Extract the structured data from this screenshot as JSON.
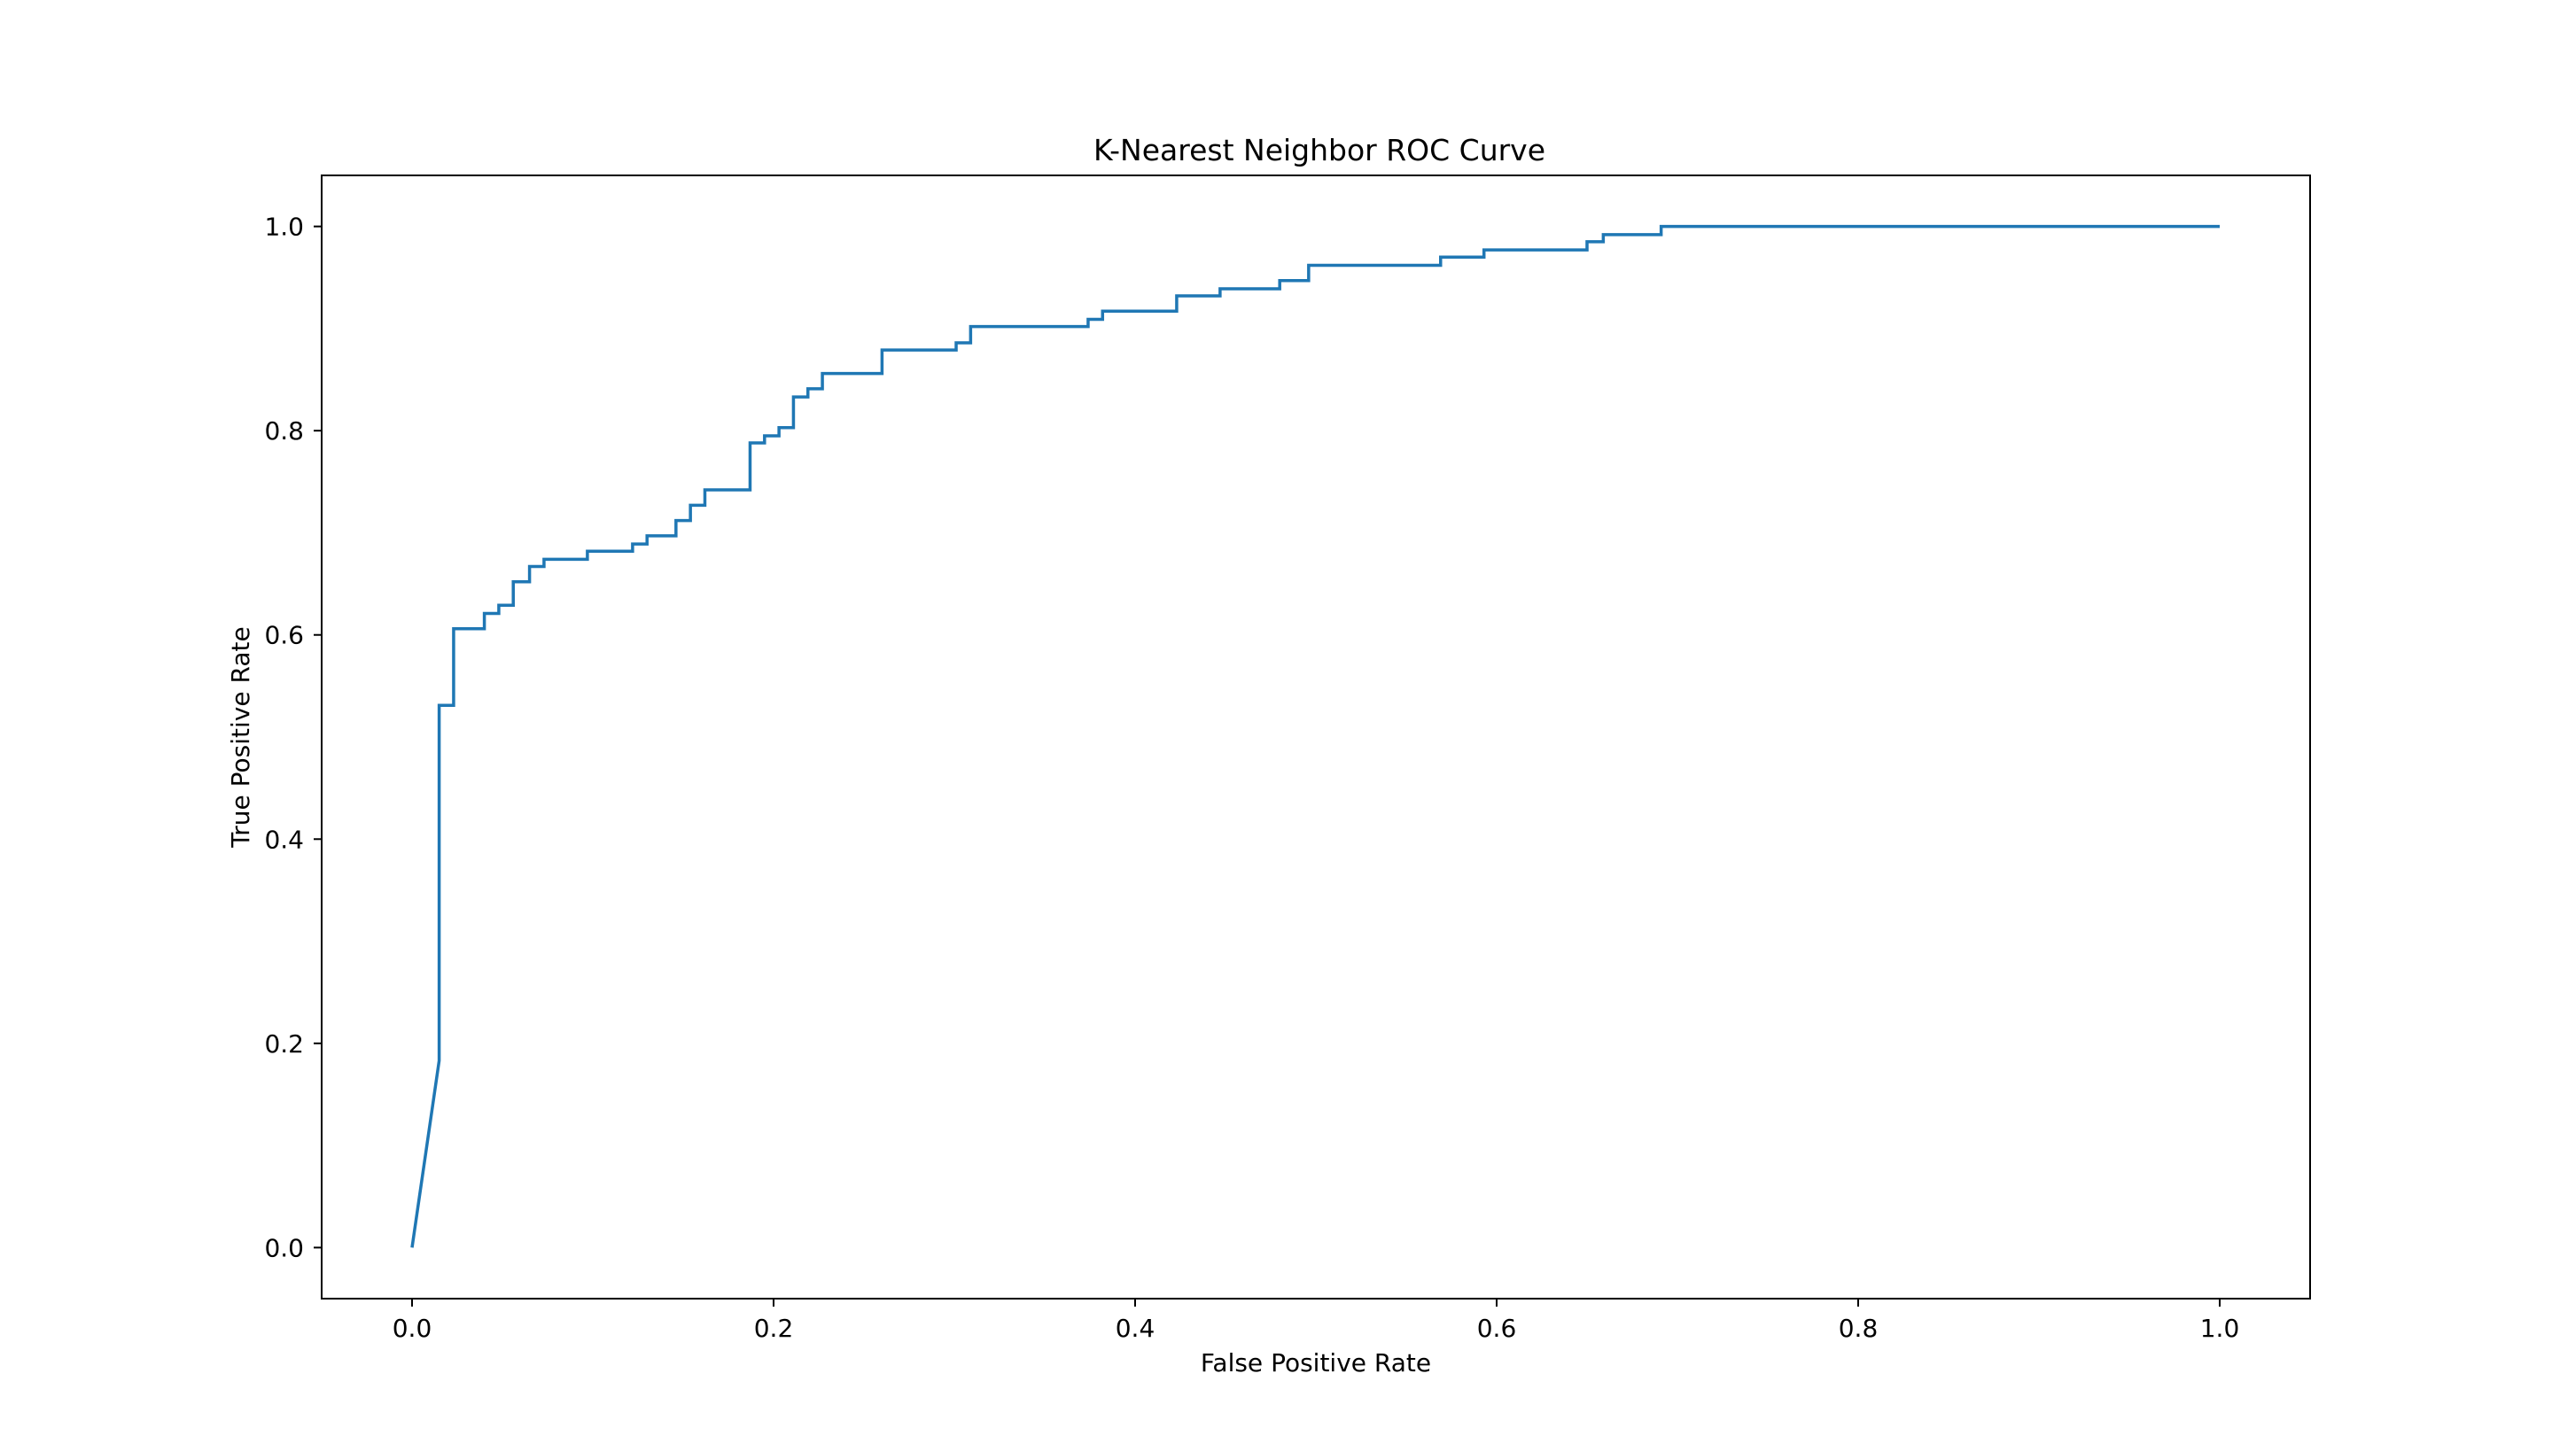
{
  "chart_data": {
    "type": "line",
    "title": "K-Nearest Neighbor ROC Curve",
    "xlabel": "False Positive Rate",
    "ylabel": "True Positive Rate",
    "xlim": [
      -0.05,
      1.05
    ],
    "ylim": [
      -0.05,
      1.05
    ],
    "xticks": [
      "0.0",
      "0.2",
      "0.4",
      "0.6",
      "0.8",
      "1.0"
    ],
    "yticks": [
      "0.0",
      "0.2",
      "0.4",
      "0.6",
      "0.8",
      "1.0"
    ],
    "grid": false,
    "legend": false,
    "series": [
      {
        "color": "#1f77b4",
        "x": [
          0.0,
          0.015,
          0.015,
          0.023,
          0.023,
          0.04,
          0.04,
          0.048,
          0.048,
          0.056,
          0.056,
          0.065,
          0.065,
          0.073,
          0.073,
          0.097,
          0.097,
          0.122,
          0.122,
          0.13,
          0.13,
          0.146,
          0.146,
          0.154,
          0.154,
          0.162,
          0.162,
          0.187,
          0.187,
          0.195,
          0.195,
          0.203,
          0.203,
          0.211,
          0.211,
          0.219,
          0.219,
          0.227,
          0.227,
          0.26,
          0.26,
          0.301,
          0.301,
          0.309,
          0.309,
          0.374,
          0.374,
          0.382,
          0.382,
          0.423,
          0.423,
          0.447,
          0.447,
          0.48,
          0.48,
          0.496,
          0.496,
          0.569,
          0.569,
          0.593,
          0.593,
          0.65,
          0.65,
          0.659,
          0.659,
          0.691,
          0.691,
          1.0
        ],
        "y": [
          0.0,
          0.183,
          0.531,
          0.531,
          0.606,
          0.606,
          0.621,
          0.621,
          0.629,
          0.629,
          0.652,
          0.652,
          0.667,
          0.667,
          0.674,
          0.674,
          0.682,
          0.682,
          0.689,
          0.689,
          0.697,
          0.697,
          0.712,
          0.712,
          0.727,
          0.727,
          0.742,
          0.742,
          0.788,
          0.788,
          0.795,
          0.795,
          0.803,
          0.803,
          0.833,
          0.833,
          0.841,
          0.841,
          0.856,
          0.856,
          0.879,
          0.879,
          0.886,
          0.886,
          0.902,
          0.902,
          0.909,
          0.909,
          0.917,
          0.917,
          0.932,
          0.932,
          0.939,
          0.939,
          0.947,
          0.947,
          0.962,
          0.962,
          0.97,
          0.97,
          0.977,
          0.977,
          0.985,
          0.985,
          0.992,
          0.992,
          1.0,
          1.0
        ]
      }
    ]
  }
}
